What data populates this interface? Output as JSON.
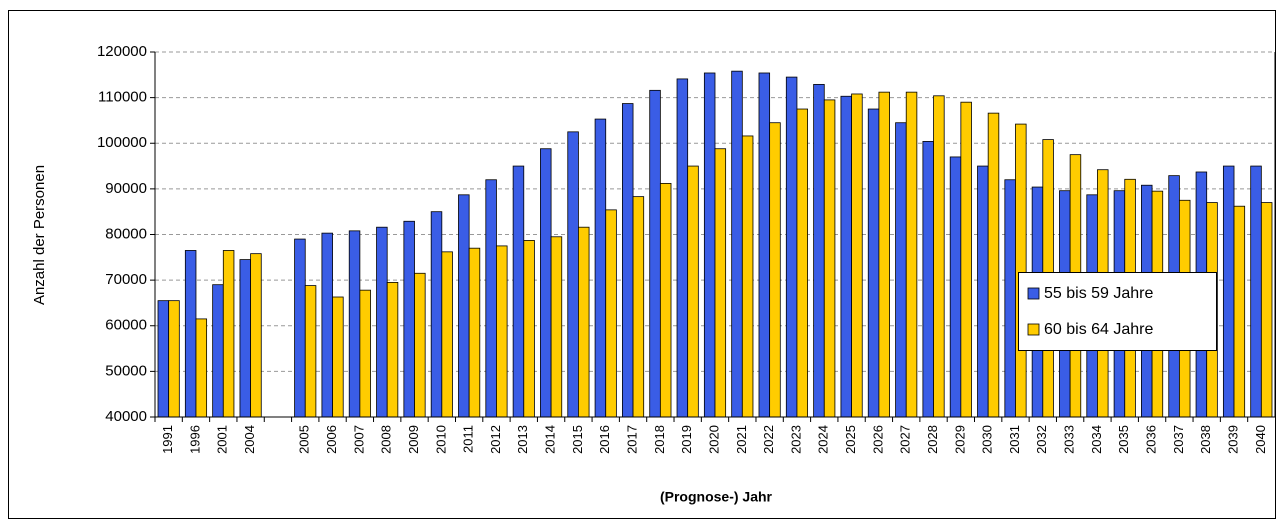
{
  "chart_data": {
    "type": "bar",
    "x_label": "(Prognose-) Jahr",
    "y_label": "Anzahl der Personen",
    "categories": [
      "1991",
      "1996",
      "2001",
      "2004",
      null,
      "2005",
      "2006",
      "2007",
      "2008",
      "2009",
      "2010",
      "2011",
      "2012",
      "2013",
      "2014",
      "2015",
      "2016",
      "2017",
      "2018",
      "2019",
      "2020",
      "2021",
      "2022",
      "2023",
      "2024",
      "2025",
      "2026",
      "2027",
      "2028",
      "2029",
      "2030",
      "2031",
      "2032",
      "2033",
      "2034",
      "2035",
      "2036",
      "2037",
      "2038",
      "2039",
      "2040"
    ],
    "series": [
      {
        "name": "55 bis 59 Jahre",
        "color": "#3a5de6",
        "values": [
          65500,
          76500,
          69000,
          74500,
          null,
          79000,
          80300,
          80800,
          81600,
          82900,
          85000,
          88700,
          92000,
          95000,
          98800,
          102500,
          105300,
          108700,
          111600,
          114100,
          115400,
          115800,
          115400,
          114500,
          112900,
          110300,
          107500,
          104500,
          100400,
          97000,
          95000,
          92000,
          90400,
          89600,
          88700,
          89600,
          90800,
          92900,
          93700,
          95000,
          95000
        ]
      },
      {
        "name": "60 bis 64 Jahre",
        "color": "#ffcc00",
        "values": [
          65500,
          61500,
          76500,
          75800,
          null,
          68800,
          66300,
          67800,
          69500,
          71500,
          76200,
          77000,
          77500,
          78700,
          79500,
          81600,
          85400,
          88300,
          91200,
          95000,
          98800,
          101600,
          104500,
          107500,
          109500,
          110800,
          111200,
          111200,
          110400,
          109000,
          106600,
          104200,
          100800,
          97500,
          94200,
          92100,
          89500,
          87500,
          87000,
          86200,
          87000
        ]
      }
    ],
    "ylim": [
      40000,
      120000
    ],
    "yticks": [
      40000,
      50000,
      60000,
      70000,
      80000,
      90000,
      100000,
      110000,
      120000
    ],
    "grid": true,
    "legend": "right"
  }
}
